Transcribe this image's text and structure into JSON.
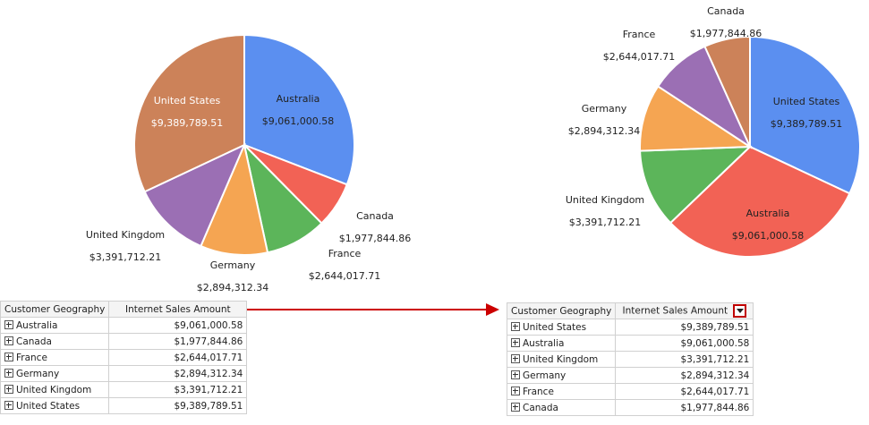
{
  "colors": {
    "blue": "#5b8ff0",
    "red": "#f26255",
    "green": "#5cb55a",
    "orange": "#f5a552",
    "purple": "#9b6fb4",
    "brown": "#cc8259",
    "arrow": "#cc0000"
  },
  "chart_data": [
    {
      "type": "pie",
      "title": "",
      "categories": [
        "Australia",
        "Canada",
        "France",
        "Germany",
        "United Kingdom",
        "United States"
      ],
      "values": [
        9061000.58,
        1977844.86,
        2644017.71,
        2894312.34,
        3391712.21,
        9389789.51
      ],
      "labels": [
        "$9,061,000.58",
        "$1,977,844.86",
        "$2,644,017.71",
        "$2,894,312.34",
        "$3,391,712.21",
        "$9,389,789.51"
      ],
      "colors": [
        "#5b8ff0",
        "#f26255",
        "#5cb55a",
        "#f5a552",
        "#9b6fb4",
        "#cc8259"
      ]
    },
    {
      "type": "pie",
      "title": "",
      "categories": [
        "United States",
        "Australia",
        "United Kingdom",
        "Germany",
        "France",
        "Canada"
      ],
      "values": [
        9389789.51,
        9061000.58,
        3391712.21,
        2894312.34,
        2644017.71,
        1977844.86
      ],
      "labels": [
        "$9,389,789.51",
        "$9,061,000.58",
        "$3,391,712.21",
        "$2,894,312.34",
        "$2,644,017.71",
        "$1,977,844.86"
      ],
      "colors": [
        "#5b8ff0",
        "#f26255",
        "#5cb55a",
        "#f5a552",
        "#9b6fb4",
        "#cc8259"
      ]
    }
  ],
  "tables": [
    {
      "headers": [
        "Customer Geography",
        "Internet Sales Amount"
      ],
      "rows": [
        {
          "geo": "Australia",
          "amount": "$9,061,000.58"
        },
        {
          "geo": "Canada",
          "amount": "$1,977,844.86"
        },
        {
          "geo": "France",
          "amount": "$2,644,017.71"
        },
        {
          "geo": "Germany",
          "amount": "$2,894,312.34"
        },
        {
          "geo": "United Kingdom",
          "amount": "$3,391,712.21"
        },
        {
          "geo": "United States",
          "amount": "$9,389,789.51"
        }
      ]
    },
    {
      "headers": [
        "Customer Geography",
        "Internet Sales Amount"
      ],
      "rows": [
        {
          "geo": "United States",
          "amount": "$9,389,789.51"
        },
        {
          "geo": "Australia",
          "amount": "$9,061,000.58"
        },
        {
          "geo": "United Kingdom",
          "amount": "$3,391,712.21"
        },
        {
          "geo": "Germany",
          "amount": "$2,894,312.34"
        },
        {
          "geo": "France",
          "amount": "$2,644,017.71"
        },
        {
          "geo": "Canada",
          "amount": "$1,977,844.86"
        }
      ]
    }
  ]
}
